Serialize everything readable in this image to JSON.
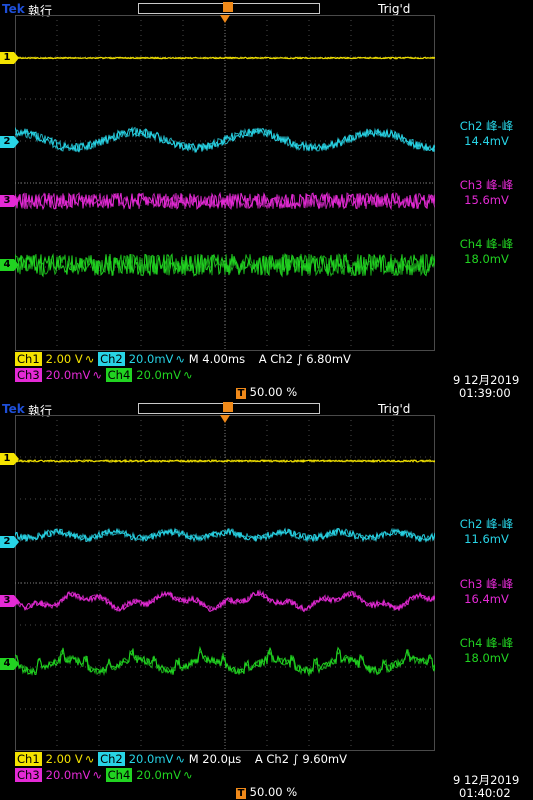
{
  "screens": [
    {
      "brand": "Tek",
      "run_state": "執行",
      "trigger_state": "Trig'd",
      "channel_markers": [
        "1",
        "2",
        "3",
        "4"
      ],
      "measurements": [
        {
          "label": "Ch2 峰-峰",
          "value": "14.4mV",
          "color": "#28d4e6"
        },
        {
          "label": "Ch3 峰-峰",
          "value": "15.6mV",
          "color": "#e52ad6"
        },
        {
          "label": "Ch4 峰-峰",
          "value": "18.0mV",
          "color": "#21d321"
        }
      ],
      "status": {
        "ch1": "Ch1",
        "ch1_scale": "2.00 V",
        "ch2": "Ch2",
        "ch2_scale": "20.0mV",
        "ch3": "Ch3",
        "ch3_scale": "20.0mV",
        "ch4": "Ch4",
        "ch4_scale": "20.0mV",
        "timebase": "M 4.00ms",
        "trigger": "A  Ch2  ∫  6.80mV",
        "trigger_pos": "50.00 %",
        "date": "9 12月2019",
        "time": "01:39:00"
      }
    },
    {
      "brand": "Tek",
      "run_state": "執行",
      "trigger_state": "Trig'd",
      "channel_markers": [
        "1",
        "2",
        "3",
        "4"
      ],
      "measurements": [
        {
          "label": "Ch2 峰-峰",
          "value": "11.6mV",
          "color": "#28d4e6"
        },
        {
          "label": "Ch3 峰-峰",
          "value": "16.4mV",
          "color": "#e52ad6"
        },
        {
          "label": "Ch4 峰-峰",
          "value": "18.0mV",
          "color": "#21d321"
        }
      ],
      "status": {
        "ch1": "Ch1",
        "ch1_scale": "2.00 V",
        "ch2": "Ch2",
        "ch2_scale": "20.0mV",
        "ch3": "Ch3",
        "ch3_scale": "20.0mV",
        "ch4": "Ch4",
        "ch4_scale": "20.0mV",
        "timebase": "M 20.0µs",
        "trigger": "A  Ch2  ∫  9.60mV",
        "trigger_pos": "50.00 %",
        "date": "9 12月2019",
        "time": "01:40:02"
      }
    }
  ],
  "colors": {
    "ch1": "#f4e300",
    "ch2": "#28d4e6",
    "ch3": "#e52ad6",
    "ch4": "#21d321",
    "grid": "#4a4a4a",
    "trigger": "#f08a1a"
  }
}
